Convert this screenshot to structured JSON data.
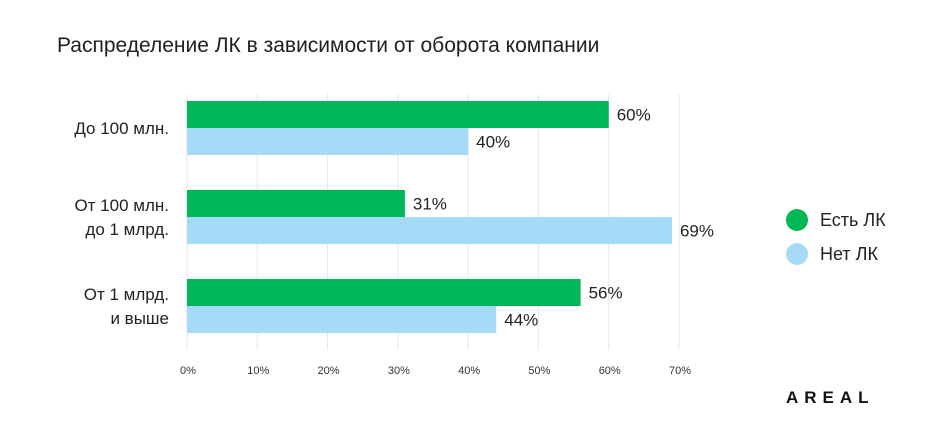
{
  "title": "Распределение ЛК в зависимости от оборота компании",
  "brand": "AREAL",
  "colors": {
    "has": "#00b656",
    "no": "#a6dbf7",
    "grid": "#e6e6e6"
  },
  "chart_data": {
    "type": "bar",
    "orientation": "horizontal",
    "title": "Распределение ЛК в зависимости от оборота компании",
    "categories": [
      [
        "До 100 млн."
      ],
      [
        "От 100 млн.",
        "до 1 млрд."
      ],
      [
        "От 1 млрд.",
        "и выше"
      ]
    ],
    "series": [
      {
        "name": "Есть ЛК",
        "values": [
          60,
          31,
          56
        ],
        "labels": [
          "60%",
          "31%",
          "56%"
        ]
      },
      {
        "name": "Нет ЛК",
        "values": [
          40,
          69,
          44
        ],
        "labels": [
          "40%",
          "69%",
          "44%"
        ]
      }
    ],
    "xlim": [
      0,
      70
    ],
    "ticks": [
      0,
      10,
      20,
      30,
      40,
      50,
      60,
      70
    ],
    "tick_labels": [
      "0%",
      "10%",
      "20%",
      "30%",
      "40%",
      "50%",
      "60%",
      "70%"
    ],
    "grid": true,
    "legend_position": "right"
  }
}
